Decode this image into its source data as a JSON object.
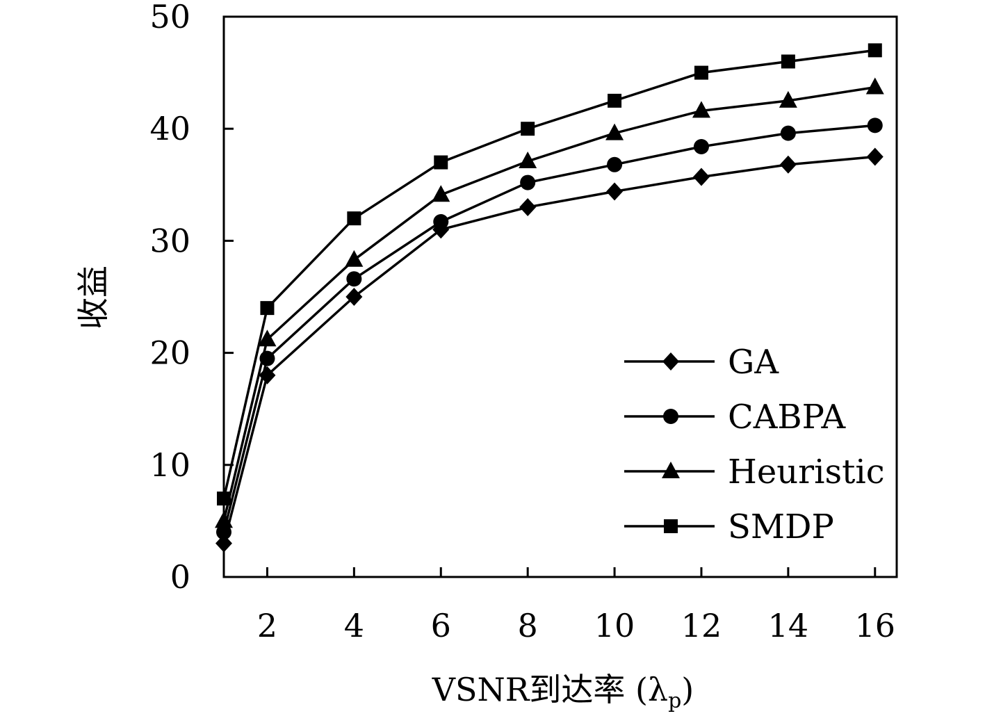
{
  "chart_data": {
    "type": "line",
    "xlabel": "VSNR到达率 (λ",
    "xlabel_sub": "p",
    "xlabel_close": ")",
    "ylabel": "收益",
    "xlim": [
      1,
      16.5
    ],
    "ylim": [
      0,
      50
    ],
    "x": [
      1,
      2,
      4,
      6,
      8,
      10,
      12,
      14,
      16
    ],
    "xticks": [
      2,
      4,
      6,
      8,
      10,
      12,
      14,
      16
    ],
    "yticks": [
      0,
      10,
      20,
      30,
      40,
      50
    ],
    "legend_position": "bottom-right",
    "grid": false,
    "series": [
      {
        "name": "GA",
        "marker": "diamond",
        "values": [
          3,
          18,
          25,
          31,
          33,
          34.4,
          35.7,
          36.8,
          37.5
        ]
      },
      {
        "name": "CABPA",
        "marker": "circle",
        "values": [
          4,
          19.5,
          26.6,
          31.7,
          35.2,
          36.8,
          38.4,
          39.6,
          40.3
        ]
      },
      {
        "name": "Heuristic",
        "marker": "triangle",
        "values": [
          5,
          21.2,
          28.3,
          34.1,
          37.1,
          39.6,
          41.6,
          42.5,
          43.7
        ]
      },
      {
        "name": "SMDP",
        "marker": "square",
        "values": [
          7,
          24,
          32,
          37,
          40,
          42.5,
          45,
          46,
          47
        ]
      }
    ],
    "line_color": "#000000"
  }
}
